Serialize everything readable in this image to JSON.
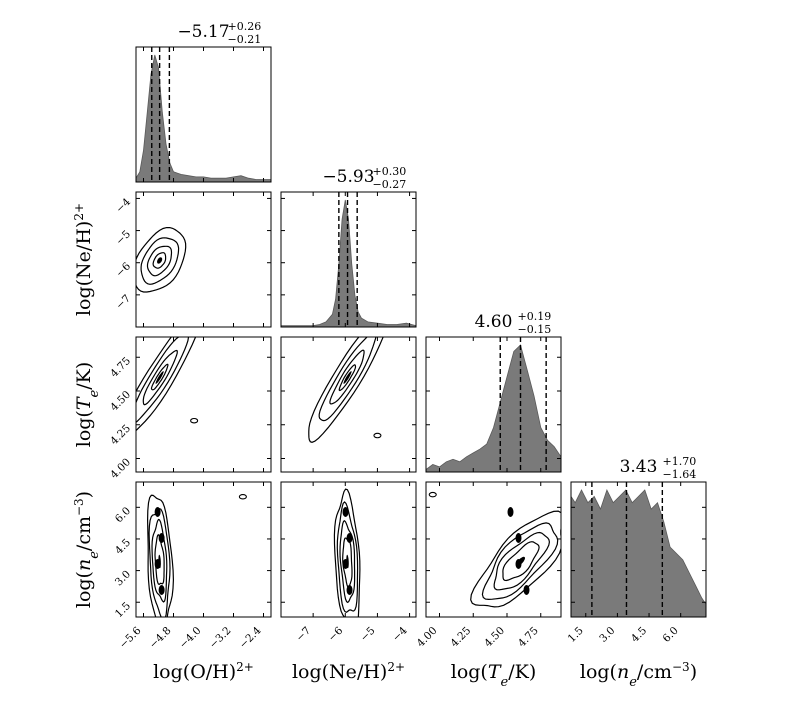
{
  "chart_data": {
    "type": "corner",
    "parameters": [
      {
        "id": "O2",
        "label": {
          "pre": "log(O",
          "sup": "2+",
          "post": "/H)"
        },
        "range": [
          -5.8,
          -2.2
        ],
        "ticks": [
          -5.6,
          -4.8,
          -4.0,
          -3.2,
          -2.4
        ],
        "tick_labels": [
          "−5.6",
          "−4.8",
          "−4.0",
          "−3.2",
          "−2.4"
        ],
        "median": -5.17,
        "err_plus": 0.26,
        "err_minus": 0.21,
        "title": {
          "main": "−5.17",
          "plus": "+0.26",
          "minus": "−0.21"
        },
        "hist": {
          "x": [
            -5.8,
            -5.7,
            -5.6,
            -5.5,
            -5.4,
            -5.3,
            -5.2,
            -5.1,
            -5.0,
            -4.9,
            -4.8,
            -4.7,
            -4.6,
            -4.4,
            -4.2,
            -4.0,
            -3.8,
            -3.6,
            -3.4,
            -3.2,
            -3.0,
            -2.8,
            -2.6,
            -2.4,
            -2.2
          ],
          "y": [
            0.03,
            0.08,
            0.25,
            0.55,
            0.85,
            1.0,
            0.9,
            0.55,
            0.3,
            0.15,
            0.08,
            0.07,
            0.06,
            0.05,
            0.04,
            0.04,
            0.03,
            0.03,
            0.03,
            0.04,
            0.05,
            0.03,
            0.02,
            0.02,
            0.02
          ]
        }
      },
      {
        "id": "Ne2",
        "label": {
          "pre": "log(Ne",
          "sup": "2+",
          "post": "/H)"
        },
        "range": [
          -8.0,
          -3.8
        ],
        "ticks": [
          -7,
          -6,
          -5,
          -4
        ],
        "tick_labels": [
          "−7",
          "−6",
          "−5",
          "−4"
        ],
        "median": -5.93,
        "err_plus": 0.3,
        "err_minus": 0.27,
        "title": {
          "main": "−5.93",
          "plus": "+0.30",
          "minus": "−0.27"
        },
        "hist": {
          "x": [
            -8.0,
            -7.5,
            -7.0,
            -6.8,
            -6.6,
            -6.4,
            -6.3,
            -6.2,
            -6.1,
            -6.0,
            -5.9,
            -5.8,
            -5.7,
            -5.6,
            -5.5,
            -5.3,
            -5.0,
            -4.7,
            -4.4,
            -4.1,
            -3.8
          ],
          "y": [
            0.01,
            0.01,
            0.01,
            0.02,
            0.04,
            0.1,
            0.22,
            0.5,
            0.85,
            1.0,
            0.85,
            0.5,
            0.25,
            0.12,
            0.07,
            0.04,
            0.03,
            0.02,
            0.02,
            0.03,
            0.01
          ]
        }
      },
      {
        "id": "Te",
        "label": {
          "pre": "log(",
          "ital": "T",
          "sub": "e",
          "post": "/K)"
        },
        "range": [
          3.9,
          4.9
        ],
        "ticks": [
          4.0,
          4.25,
          4.5,
          4.75
        ],
        "tick_labels": [
          "4.00",
          "4.25",
          "4.50",
          "4.75"
        ],
        "median": 4.6,
        "err_plus": 0.19,
        "err_minus": 0.15,
        "title": {
          "main": "4.60",
          "plus": "+0.19",
          "minus": "−0.15"
        },
        "hist": {
          "x": [
            3.9,
            3.95,
            4.0,
            4.05,
            4.1,
            4.15,
            4.2,
            4.25,
            4.3,
            4.35,
            4.4,
            4.45,
            4.5,
            4.55,
            4.6,
            4.65,
            4.7,
            4.75,
            4.8,
            4.85,
            4.9
          ],
          "y": [
            0.02,
            0.06,
            0.04,
            0.08,
            0.1,
            0.08,
            0.12,
            0.15,
            0.18,
            0.22,
            0.35,
            0.55,
            0.75,
            0.95,
            1.0,
            0.8,
            0.6,
            0.35,
            0.25,
            0.2,
            0.12
          ]
        }
      },
      {
        "id": "ne",
        "label": {
          "pre": "log(",
          "ital": "n",
          "sub": "e",
          "post": "/cm",
          "sup": "−3",
          "post2": ")"
        },
        "range": [
          0.8,
          7.2
        ],
        "ticks": [
          1.5,
          3.0,
          4.5,
          6.0
        ],
        "tick_labels": [
          "1.5",
          "3.0",
          "4.5",
          "6.0"
        ],
        "median": 3.43,
        "err_plus": 1.7,
        "err_minus": 1.64,
        "title": {
          "main": "3.43",
          "plus": "+1.70",
          "minus": "−1.64"
        },
        "hist": {
          "x": [
            0.8,
            1.0,
            1.3,
            1.6,
            1.9,
            2.2,
            2.5,
            2.8,
            3.1,
            3.4,
            3.7,
            4.0,
            4.3,
            4.6,
            4.9,
            5.2,
            5.5,
            5.8,
            6.1,
            6.4,
            6.7,
            7.0,
            7.2
          ],
          "y": [
            0.95,
            0.9,
            1.0,
            0.9,
            0.95,
            0.85,
            1.0,
            0.9,
            0.95,
            1.0,
            0.9,
            0.95,
            1.0,
            0.85,
            0.9,
            0.75,
            0.55,
            0.5,
            0.45,
            0.35,
            0.25,
            0.15,
            0.1
          ]
        }
      }
    ],
    "contours": [
      {
        "row": 1,
        "col": 0,
        "rx": 0.16,
        "ry": 0.26,
        "levels": [
          1.0,
          0.72,
          0.46,
          0.24
        ],
        "extra": []
      },
      {
        "row": 2,
        "col": 0,
        "rx": 0.1,
        "ry": 0.55,
        "levels": [
          1.0,
          0.7,
          0.42,
          0.2
        ],
        "extra": [
          [
            -4.25,
            4.28
          ]
        ]
      },
      {
        "row": 2,
        "col": 1,
        "rx": 0.1,
        "ry": 0.55,
        "levels": [
          1.0,
          0.7,
          0.42,
          0.2
        ],
        "extra": [
          [
            -5.0,
            4.17
          ]
        ]
      },
      {
        "row": 3,
        "col": 0,
        "rx": 0.09,
        "ry": 0.5,
        "levels": [
          1.0,
          0.8,
          0.58,
          0.36
        ],
        "extra": [
          [
            -2.95,
            6.5
          ]
        ]
      },
      {
        "row": 3,
        "col": 1,
        "rx": 0.09,
        "ry": 0.5,
        "levels": [
          1.0,
          0.8,
          0.58,
          0.36
        ],
        "extra": []
      },
      {
        "row": 3,
        "col": 2,
        "rx": 0.18,
        "ry": 0.45,
        "levels": [
          1.0,
          0.8,
          0.6,
          0.4
        ],
        "extra": [
          [
            3.95,
            6.6
          ]
        ]
      }
    ]
  }
}
